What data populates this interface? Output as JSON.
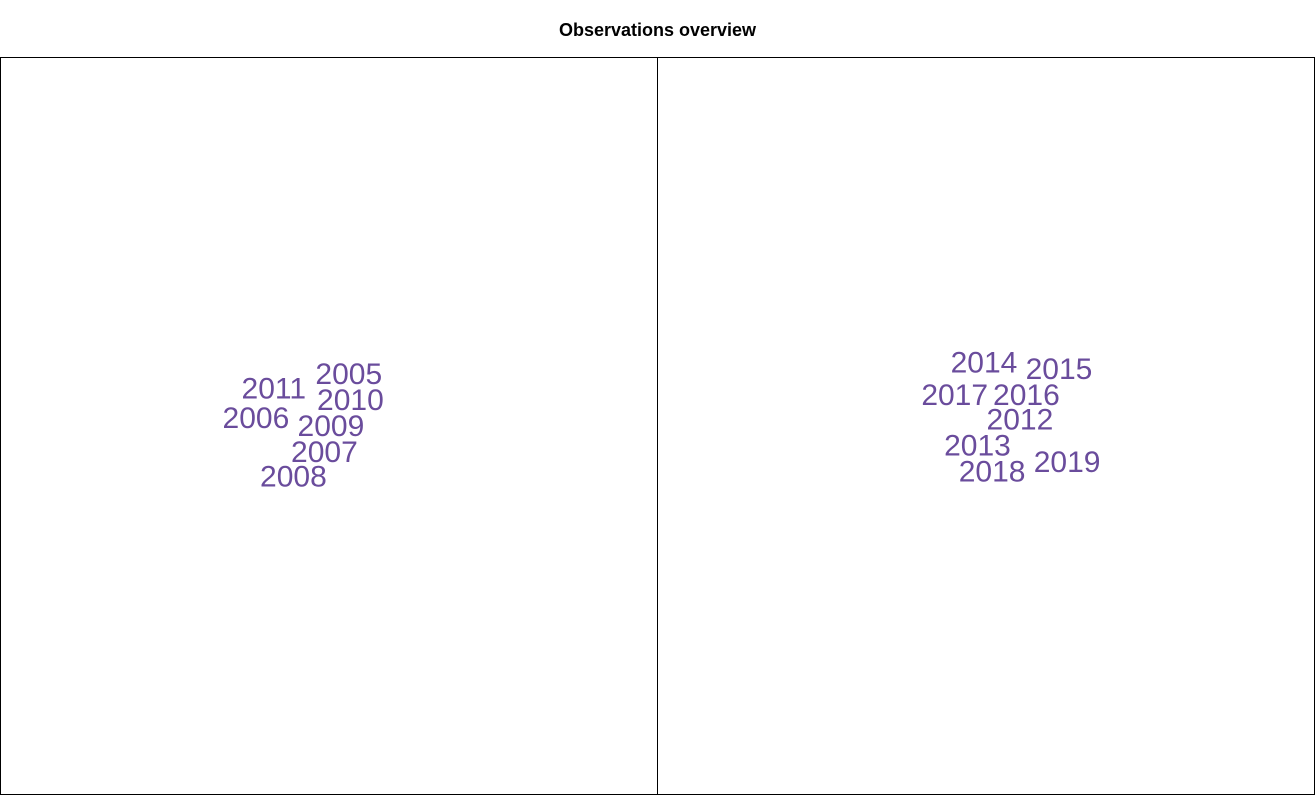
{
  "title": "Observations overview",
  "colors": {
    "label": "#6a4c9c",
    "frame": "#000000",
    "background": "#ffffff"
  },
  "chart_data": [
    {
      "type": "scatter",
      "marker": "text-label",
      "title": "",
      "xlabel": "",
      "ylabel": "",
      "axes_visible": false,
      "grid": false,
      "xlim": [
        -20,
        20
      ],
      "ylim": [
        -20,
        20
      ],
      "points": [
        {
          "label": "2005",
          "x": 1.4,
          "y": 0.0
        },
        {
          "label": "2011",
          "x": -3.2,
          "y": -0.9
        },
        {
          "label": "2010",
          "x": 1.5,
          "y": -1.6
        },
        {
          "label": "2006",
          "x": -4.3,
          "y": -2.7
        },
        {
          "label": "2009",
          "x": 0.3,
          "y": -3.2
        },
        {
          "label": "2007",
          "x": -0.1,
          "y": -4.8
        },
        {
          "label": "2008",
          "x": -2.0,
          "y": -6.3
        }
      ]
    },
    {
      "type": "scatter",
      "marker": "text-label",
      "title": "",
      "xlabel": "",
      "ylabel": "",
      "axes_visible": false,
      "grid": false,
      "xlim": [
        -20,
        20
      ],
      "ylim": [
        -20,
        20
      ],
      "points": [
        {
          "label": "2014",
          "x": 0.0,
          "y": 0.4
        },
        {
          "label": "2015",
          "x": 4.6,
          "y": 0.0
        },
        {
          "label": "2017",
          "x": -1.8,
          "y": -1.6
        },
        {
          "label": "2016",
          "x": 2.6,
          "y": -1.6
        },
        {
          "label": "2012",
          "x": 2.2,
          "y": -3.1
        },
        {
          "label": "2013",
          "x": -0.4,
          "y": -4.7
        },
        {
          "label": "2018",
          "x": 0.5,
          "y": -6.3
        },
        {
          "label": "2019",
          "x": 5.1,
          "y": -5.7
        }
      ]
    }
  ]
}
